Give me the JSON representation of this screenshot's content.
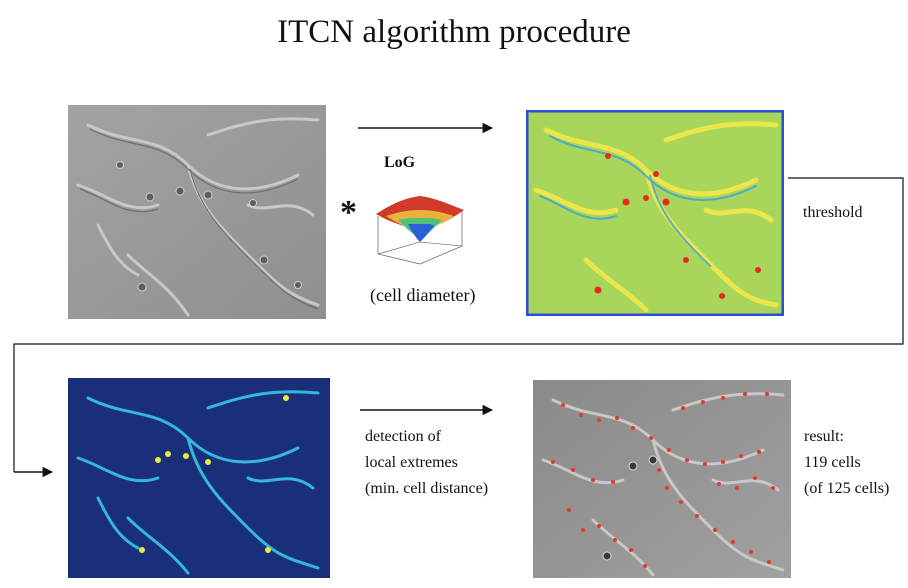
{
  "title": "ITCN algorithm procedure",
  "log_label": "LoG",
  "convolution_symbol": "*",
  "cell_diameter_label": "(cell diameter)",
  "threshold_label": "threshold",
  "detection_label": [
    "detection of",
    "local extremes",
    "(min. cell distance)"
  ],
  "result_label": [
    "result:",
    "119 cells",
    "(of 125 cells)"
  ],
  "colors": {
    "microscopy_bg": "#9a9a9a",
    "log_bg": "#a8d65a",
    "map_bg": "#1a2f7a",
    "cell_marker": "#e23a2a"
  }
}
